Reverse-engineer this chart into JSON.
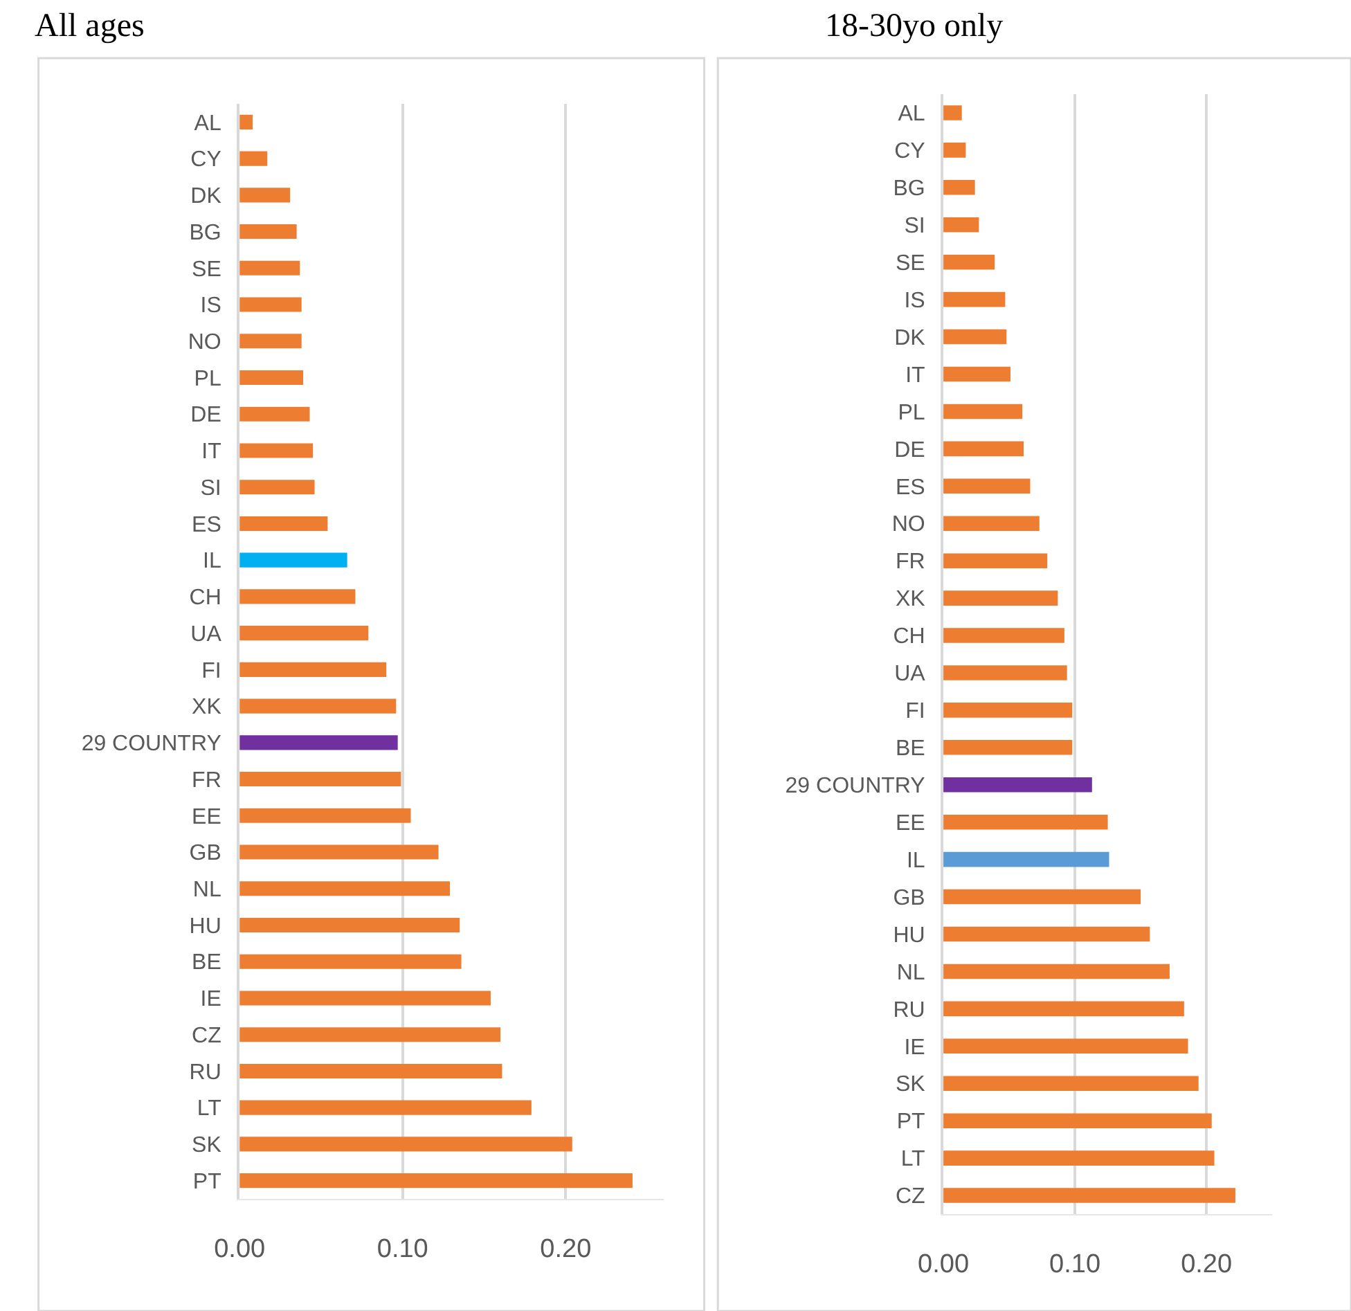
{
  "chart_data": [
    {
      "type": "bar",
      "title": "All ages",
      "orientation": "horizontal",
      "grid": "x",
      "legend": false,
      "categories": [
        "AL",
        "CY",
        "DK",
        "BG",
        "SE",
        "IS",
        "NO",
        "PL",
        "DE",
        "IT",
        "SI",
        "ES",
        "IL",
        "CH",
        "UA",
        "FI",
        "XK",
        "29 COUNTRY",
        "FR",
        "EE",
        "GB",
        "NL",
        "HU",
        "BE",
        "IE",
        "CZ",
        "RU",
        "LT",
        "SK",
        "PT"
      ],
      "xlim": [
        0,
        0.26
      ],
      "values": [
        0.008,
        0.017,
        0.031,
        0.035,
        0.037,
        0.038,
        0.038,
        0.039,
        0.043,
        0.045,
        0.046,
        0.054,
        0.066,
        0.071,
        0.079,
        0.09,
        0.096,
        0.097,
        0.099,
        0.105,
        0.122,
        0.129,
        0.135,
        0.136,
        0.154,
        0.16,
        0.161,
        0.179,
        0.204,
        0.241
      ],
      "colors": [
        "#ed7d31",
        "#ed7d31",
        "#ed7d31",
        "#ed7d31",
        "#ed7d31",
        "#ed7d31",
        "#ed7d31",
        "#ed7d31",
        "#ed7d31",
        "#ed7d31",
        "#ed7d31",
        "#ed7d31",
        "#00b0f0",
        "#ed7d31",
        "#ed7d31",
        "#ed7d31",
        "#ed7d31",
        "#7030a0",
        "#ed7d31",
        "#ed7d31",
        "#ed7d31",
        "#ed7d31",
        "#ed7d31",
        "#ed7d31",
        "#ed7d31",
        "#ed7d31",
        "#ed7d31",
        "#ed7d31",
        "#ed7d31",
        "#ed7d31"
      ],
      "xticks": [
        {
          "value": 0,
          "label": "0.00"
        },
        {
          "value": 0.1,
          "label": "0.10"
        },
        {
          "value": 0.2,
          "label": "0.20"
        }
      ]
    },
    {
      "type": "bar",
      "title": "18-30yo only",
      "orientation": "horizontal",
      "grid": "x",
      "legend": false,
      "categories": [
        "AL",
        "CY",
        "BG",
        "SI",
        "SE",
        "IS",
        "DK",
        "IT",
        "PL",
        "DE",
        "ES",
        "NO",
        "FR",
        "XK",
        "CH",
        "UA",
        "FI",
        "BE",
        "29 COUNTRY",
        "EE",
        "IL",
        "GB",
        "HU",
        "NL",
        "RU",
        "IE",
        "SK",
        "PT",
        "LT",
        "CZ"
      ],
      "xlim": [
        0,
        0.25
      ],
      "values": [
        0.014,
        0.017,
        0.024,
        0.027,
        0.039,
        0.047,
        0.048,
        0.051,
        0.06,
        0.061,
        0.066,
        0.073,
        0.079,
        0.087,
        0.092,
        0.094,
        0.098,
        0.098,
        0.113,
        0.125,
        0.126,
        0.15,
        0.157,
        0.172,
        0.183,
        0.186,
        0.194,
        0.204,
        0.206,
        0.222
      ],
      "colors": [
        "#ed7d31",
        "#ed7d31",
        "#ed7d31",
        "#ed7d31",
        "#ed7d31",
        "#ed7d31",
        "#ed7d31",
        "#ed7d31",
        "#ed7d31",
        "#ed7d31",
        "#ed7d31",
        "#ed7d31",
        "#ed7d31",
        "#ed7d31",
        "#ed7d31",
        "#ed7d31",
        "#ed7d31",
        "#ed7d31",
        "#7030a0",
        "#ed7d31",
        "#5b9bd5",
        "#ed7d31",
        "#ed7d31",
        "#ed7d31",
        "#ed7d31",
        "#ed7d31",
        "#ed7d31",
        "#ed7d31",
        "#ed7d31",
        "#ed7d31"
      ],
      "xticks": [
        {
          "value": 0,
          "label": "0.00"
        },
        {
          "value": 0.1,
          "label": "0.10"
        },
        {
          "value": 0.2,
          "label": "0.20"
        }
      ]
    }
  ]
}
